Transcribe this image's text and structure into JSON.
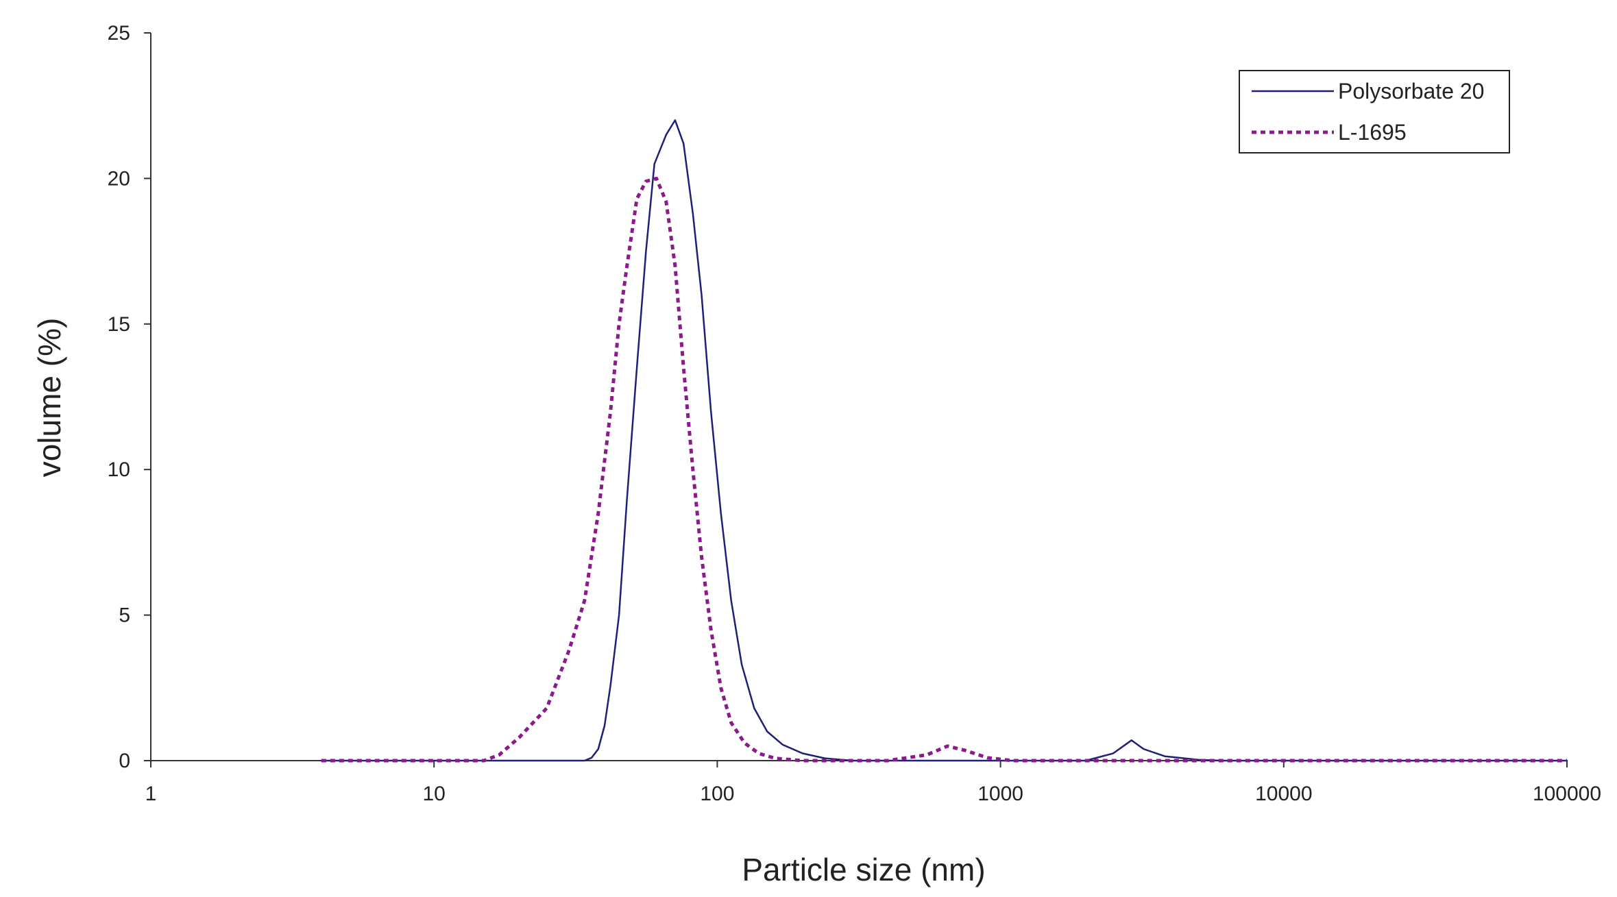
{
  "chart_data": {
    "type": "line",
    "xlabel": "Particle size (nm)",
    "ylabel": "volume (%)",
    "x_scale": "log",
    "xlim": [
      1,
      100000
    ],
    "ylim": [
      0,
      25
    ],
    "x_ticks": [
      1,
      10,
      100,
      1000,
      10000,
      100000
    ],
    "x_tick_labels": [
      "1",
      "10",
      "100",
      "1000",
      "10000",
      "100000"
    ],
    "y_ticks": [
      0,
      5,
      10,
      15,
      20,
      25
    ],
    "y_tick_labels": [
      "0",
      "5",
      "10",
      "15",
      "20",
      "25"
    ],
    "grid": false,
    "legend_position": "top-right",
    "series": [
      {
        "name": "Polysorbate 20",
        "color": "#1f1f7a",
        "style": "solid",
        "points": [
          [
            4,
            0
          ],
          [
            10,
            0
          ],
          [
            20,
            0
          ],
          [
            34,
            0
          ],
          [
            36,
            0.1
          ],
          [
            38,
            0.4
          ],
          [
            40,
            1.2
          ],
          [
            42,
            2.6
          ],
          [
            45,
            5
          ],
          [
            48,
            9
          ],
          [
            52,
            13.5
          ],
          [
            56,
            17.5
          ],
          [
            60,
            20.5
          ],
          [
            66,
            21.5
          ],
          [
            71,
            22
          ],
          [
            76,
            21.2
          ],
          [
            82,
            18.8
          ],
          [
            88,
            16
          ],
          [
            95,
            12
          ],
          [
            103,
            8.5
          ],
          [
            112,
            5.5
          ],
          [
            122,
            3.3
          ],
          [
            135,
            1.8
          ],
          [
            150,
            1
          ],
          [
            170,
            0.55
          ],
          [
            200,
            0.25
          ],
          [
            240,
            0.08
          ],
          [
            300,
            0
          ],
          [
            1000,
            0
          ],
          [
            2000,
            0
          ],
          [
            2500,
            0.25
          ],
          [
            2900,
            0.7
          ],
          [
            3200,
            0.4
          ],
          [
            3800,
            0.15
          ],
          [
            5000,
            0.03
          ],
          [
            6000,
            0
          ],
          [
            100000,
            0
          ]
        ]
      },
      {
        "name": "L-1695",
        "color": "#8b1a8b",
        "style": "dotted",
        "points": [
          [
            4,
            0
          ],
          [
            10,
            0
          ],
          [
            15,
            0
          ],
          [
            17,
            0.2
          ],
          [
            20,
            0.8
          ],
          [
            25,
            1.8
          ],
          [
            30,
            3.8
          ],
          [
            34,
            5.5
          ],
          [
            38,
            8.5
          ],
          [
            42,
            12
          ],
          [
            45,
            15
          ],
          [
            48,
            17
          ],
          [
            52,
            19.3
          ],
          [
            56,
            19.9
          ],
          [
            61,
            20
          ],
          [
            66,
            19.2
          ],
          [
            71,
            17
          ],
          [
            76,
            13.5
          ],
          [
            82,
            10
          ],
          [
            88,
            7
          ],
          [
            95,
            4.5
          ],
          [
            103,
            2.5
          ],
          [
            112,
            1.3
          ],
          [
            125,
            0.6
          ],
          [
            140,
            0.25
          ],
          [
            160,
            0.08
          ],
          [
            200,
            0
          ],
          [
            400,
            0
          ],
          [
            550,
            0.2
          ],
          [
            650,
            0.5
          ],
          [
            750,
            0.35
          ],
          [
            900,
            0.1
          ],
          [
            1100,
            0
          ],
          [
            100000,
            0
          ]
        ]
      }
    ]
  }
}
